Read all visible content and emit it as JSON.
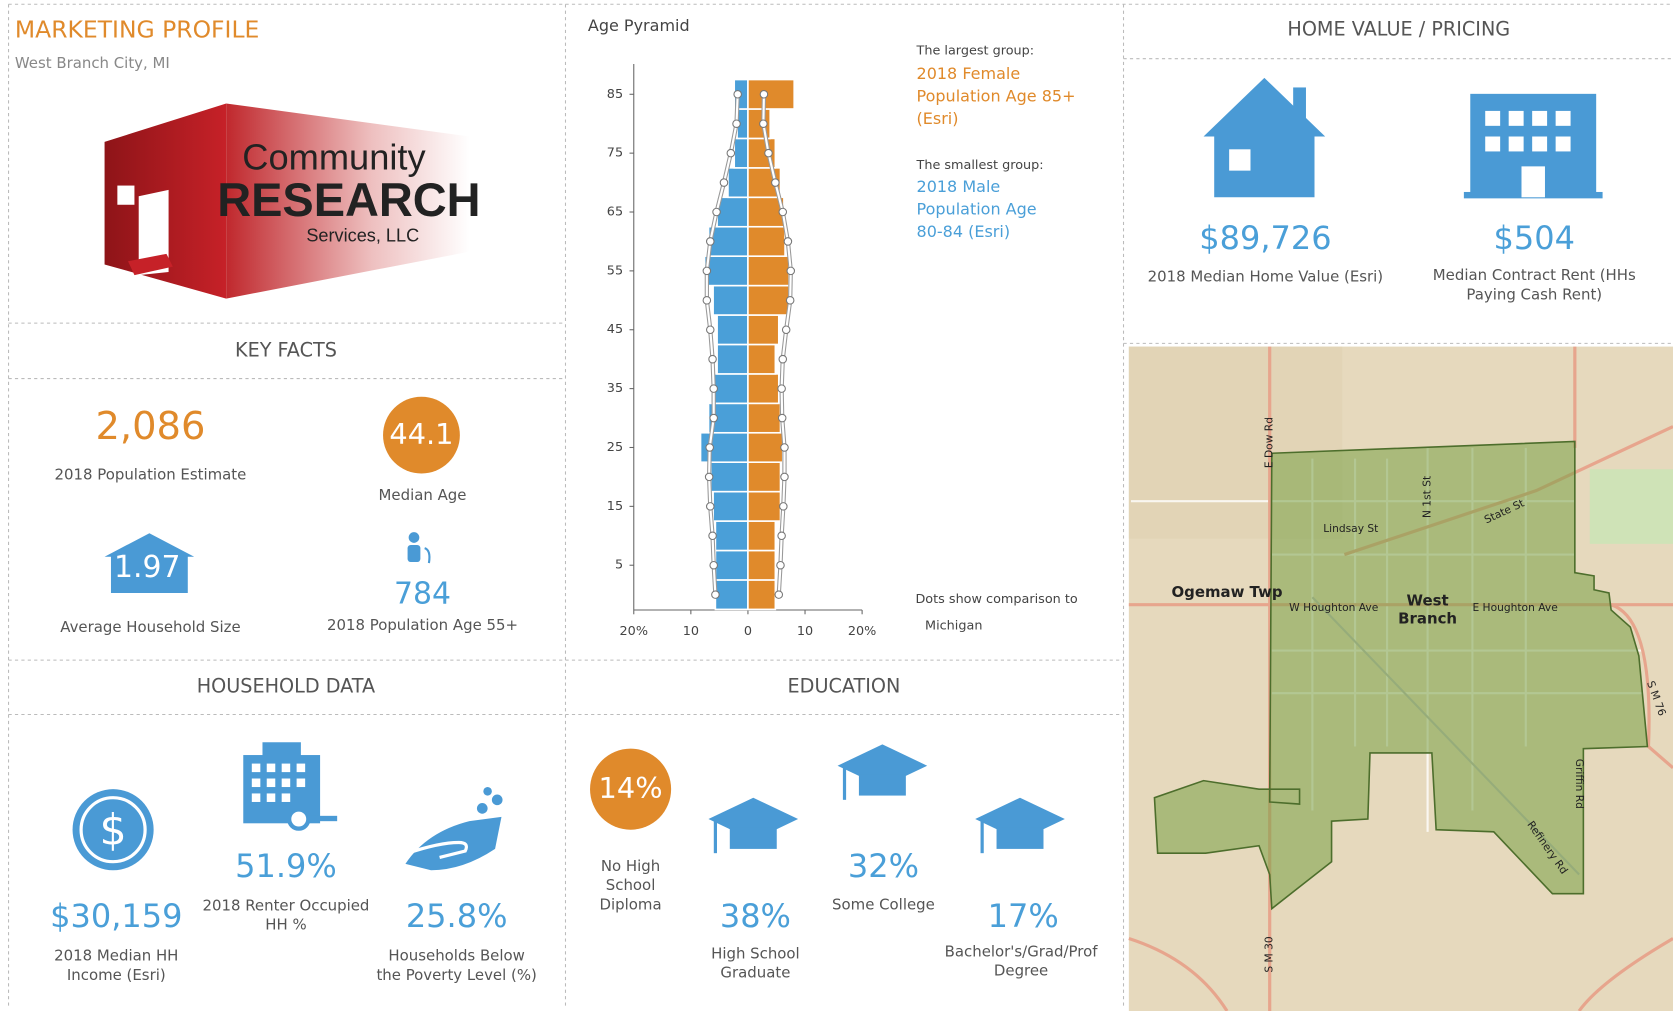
{
  "header": {
    "title": "MARKETING PROFILE",
    "subtitle": "West Branch City, MI",
    "logo": {
      "line1": "Community",
      "line2": "RESEARCH",
      "line3": "Services, LLC"
    }
  },
  "key_facts": {
    "title": "KEY FACTS",
    "items": [
      {
        "value": "2,086",
        "label": [
          "2018 Population Estimate"
        ]
      },
      {
        "value": "44.1",
        "label": [
          "Median Age"
        ]
      },
      {
        "value": "1.97",
        "label": [
          "Average Household Size"
        ]
      },
      {
        "value": "784",
        "label": [
          "2018 Population Age 55+"
        ]
      }
    ]
  },
  "household": {
    "title": "HOUSEHOLD DATA",
    "items": [
      {
        "value": "$30,159",
        "label": [
          "2018 Median HH",
          "Income (Esri)"
        ]
      },
      {
        "value": "51.9%",
        "label": [
          "2018 Renter Occupied",
          "HH %"
        ]
      },
      {
        "value": "25.8%",
        "label": [
          "Households Below",
          "the Poverty Level (%)"
        ]
      }
    ]
  },
  "education": {
    "title": "EDUCATION",
    "items": [
      {
        "value": "14%",
        "label": [
          "No High",
          "School",
          "Diploma"
        ]
      },
      {
        "value": "38%",
        "label": [
          "High School",
          "Graduate"
        ]
      },
      {
        "value": "32%",
        "label": [
          "Some College"
        ]
      },
      {
        "value": "17%",
        "label": [
          "Bachelor's/Grad/Prof",
          "Degree"
        ]
      }
    ]
  },
  "home_value": {
    "title": "HOME VALUE / PRICING",
    "items": [
      {
        "value": "$89,726",
        "label": [
          "2018 Median Home Value (Esri)"
        ]
      },
      {
        "value": "$504",
        "label": [
          "Median Contract Rent (HHs",
          "Paying Cash Rent)"
        ]
      }
    ]
  },
  "map": {
    "labels": [
      {
        "text": [
          "Ogemaw Twp"
        ]
      },
      {
        "text": [
          "West",
          "Branch"
        ]
      },
      {
        "text": [
          "W Houghton Ave"
        ]
      },
      {
        "text": [
          "E Houghton Ave"
        ]
      },
      {
        "text": [
          "Lindsay St"
        ]
      },
      {
        "text": [
          "State St"
        ]
      },
      {
        "text": [
          "N 1st St"
        ]
      },
      {
        "text": [
          "E Dow Rd"
        ]
      },
      {
        "text": [
          "S M 30"
        ]
      },
      {
        "text": [
          "S M 76"
        ]
      },
      {
        "text": [
          "Refinery Rd"
        ]
      },
      {
        "text": [
          "Griffin Rd"
        ]
      }
    ]
  },
  "chart_data": {
    "type": "pyramid",
    "title": "Age Pyramid",
    "categories": [
      null,
      "5",
      null,
      "15",
      null,
      "25",
      null,
      "35",
      null,
      "45",
      null,
      "55",
      null,
      "65",
      null,
      "75",
      null,
      "85"
    ],
    "series": [
      {
        "color": "#4a9fd8",
        "direction": "left",
        "style": "bar",
        "values": [
          5.7,
          5.7,
          5.7,
          6.1,
          6.5,
          8.3,
          6.9,
          6.5,
          5.4,
          5.4,
          6.1,
          7.6,
          6.9,
          5.4,
          3.5,
          2.4,
          1.9,
          2.4
        ]
      },
      {
        "color": "#e08a2b",
        "direction": "right",
        "style": "bar",
        "values": [
          4.8,
          4.8,
          4.8,
          5.7,
          5.7,
          6.1,
          5.7,
          5.4,
          4.8,
          5.4,
          7.2,
          7.2,
          6.5,
          6.3,
          5.7,
          4.8,
          3.9,
          8.1
        ]
      },
      {
        "color": "#ffffff",
        "direction": "left",
        "style": "dots",
        "values": [
          5.7,
          6.0,
          6.2,
          6.6,
          6.8,
          6.7,
          6.0,
          6.0,
          6.2,
          6.6,
          7.2,
          7.2,
          6.6,
          5.5,
          4.2,
          3.0,
          2.0,
          1.8
        ]
      },
      {
        "color": "#ffffff",
        "direction": "right",
        "style": "dots",
        "values": [
          5.4,
          5.7,
          5.9,
          6.2,
          6.4,
          6.4,
          6.0,
          5.9,
          6.1,
          6.7,
          7.4,
          7.5,
          7.0,
          6.1,
          4.8,
          3.6,
          2.7,
          2.8
        ]
      }
    ],
    "xlim": [
      -20,
      20
    ],
    "xticks": [
      {
        "value": -20,
        "label": "20%"
      },
      {
        "value": -10,
        "label": "10"
      },
      0,
      10,
      {
        "value": 20,
        "label": "20%"
      }
    ],
    "annotations": [
      {
        "text": [
          "The largest group:"
        ],
        "color": "#444444",
        "size": 12
      },
      {
        "text": [
          "2018 Female",
          "Population Age 85+",
          "(Esri)"
        ],
        "color": "#e08a2b",
        "size": 15
      },
      {
        "text": [
          "The smallest group:"
        ],
        "color": "#444444",
        "size": 12
      },
      {
        "text": [
          "2018 Male",
          "Population Age",
          "80-84 (Esri)"
        ],
        "color": "#4a9fd8",
        "size": 15
      },
      {
        "text": [
          "Dots show comparison to"
        ],
        "color": "#444444",
        "size": 12
      },
      {
        "text": [
          "Michigan"
        ],
        "color": "#444444",
        "size": 12
      }
    ]
  }
}
